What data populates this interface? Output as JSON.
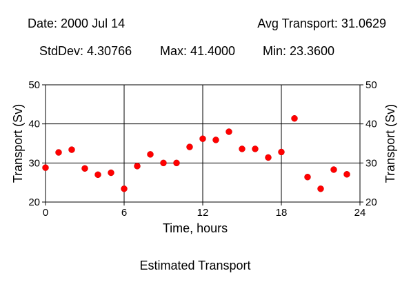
{
  "header": {
    "date_text": "Date: 2000 Jul 14",
    "avg_text": "Avg Transport: 31.0629",
    "stddev_text": "StdDev: 4.30766",
    "max_text": "Max: 41.4000",
    "min_text": "Min: 23.3600"
  },
  "caption": "Estimated Transport",
  "chart_data": {
    "type": "scatter",
    "title": "",
    "xlabel": "Time, hours",
    "ylabel": "Transport (Sv)",
    "ylabel_right": "Transport (Sv)",
    "xlim": [
      0,
      24
    ],
    "ylim": [
      20,
      50
    ],
    "xticks": [
      0,
      6,
      12,
      18,
      24
    ],
    "yticks": [
      20,
      30,
      40,
      50
    ],
    "grid": true,
    "marker_color": "#ff0000",
    "series": [
      {
        "x": [
          0,
          1,
          2,
          3,
          4,
          5,
          6,
          7,
          8,
          9,
          10,
          11,
          12,
          13,
          14,
          15,
          16,
          17,
          18,
          19,
          20,
          21,
          22,
          23
        ],
        "y": [
          28.8,
          32.7,
          33.4,
          28.6,
          27.0,
          27.5,
          23.4,
          29.2,
          32.2,
          30.0,
          30.0,
          34.1,
          36.2,
          35.9,
          38.0,
          33.6,
          33.6,
          31.4,
          32.8,
          41.4,
          26.4,
          23.4,
          28.3,
          27.1
        ]
      }
    ]
  }
}
